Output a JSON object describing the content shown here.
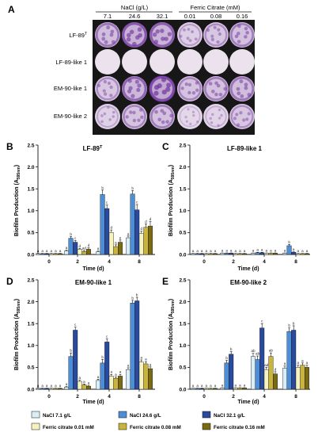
{
  "panel_a": {
    "letter": "A",
    "groups": [
      {
        "label": "NaCl (g/L)",
        "columns": [
          "7.1",
          "24.6",
          "32.1"
        ]
      },
      {
        "label": "Ferric Citrate (mM)",
        "columns": [
          "0.01",
          "0.08",
          "0.16"
        ]
      }
    ],
    "rows": [
      {
        "label": "LF-89",
        "sup": "T",
        "stain": [
          0.6,
          0.8,
          0.75,
          0.35,
          0.45,
          0.55
        ]
      },
      {
        "label": "LF-89-like 1",
        "sup": "",
        "stain": [
          0.03,
          0.03,
          0.03,
          0.03,
          0.03,
          0.03
        ]
      },
      {
        "label": "EM-90-like 1",
        "sup": "",
        "stain": [
          0.45,
          0.7,
          0.95,
          0.5,
          0.55,
          0.6
        ]
      },
      {
        "label": "EM-90-like 2",
        "sup": "",
        "stain": [
          0.3,
          0.5,
          0.55,
          0.2,
          0.25,
          0.45
        ]
      }
    ]
  },
  "colors": {
    "nacl_7_1": "#dbeef8",
    "nacl_24_6": "#4d8fd6",
    "nacl_32_1": "#2a4a9e",
    "fc_0_01": "#f6f3bf",
    "fc_0_08": "#c9b53e",
    "fc_0_16": "#7b6a14",
    "stain_light": "#ece4ee",
    "stain_dark": "#6a2f9a"
  },
  "chart_data": [
    {
      "panel": "B",
      "type": "bar",
      "title": "LF-89",
      "title_sup": "T",
      "xlabel": "Time (d)",
      "ylabel": "Biofilm Production (A",
      "ylabel_sub": "595nm",
      "ylabel_end": ")",
      "categories": [
        "0",
        "2",
        "4",
        "8"
      ],
      "ylim": [
        0,
        2.5
      ],
      "yticks": [
        "0.0",
        "0.5",
        "1.0",
        "1.5",
        "2.0",
        "2.5"
      ],
      "series": [
        {
          "name": "NaCl 7.1 g/L",
          "values": [
            0.02,
            0.08,
            0.06,
            0.38
          ],
          "errors": [
            0.005,
            0.02,
            0.02,
            0.04
          ],
          "letters": [
            "a",
            "a",
            "a",
            "a"
          ]
        },
        {
          "name": "NaCl 24.6 g/L",
          "values": [
            0.02,
            0.37,
            1.37,
            1.38
          ],
          "errors": [
            0.005,
            0.04,
            0.1,
            0.08
          ],
          "letters": [
            "a",
            "b",
            "b",
            "b"
          ]
        },
        {
          "name": "NaCl 32.1 g/L",
          "values": [
            0.02,
            0.28,
            1.05,
            1.02
          ],
          "errors": [
            0.005,
            0.04,
            0.08,
            0.12
          ],
          "letters": [
            "a",
            "c",
            "c",
            "c"
          ]
        },
        {
          "name": "Ferric citrate 0.01 mM",
          "values": [
            0.02,
            0.12,
            0.5,
            0.48
          ],
          "errors": [
            0.005,
            0.02,
            0.06,
            0.05
          ],
          "letters": [
            "a",
            "d",
            "d",
            "d"
          ]
        },
        {
          "name": "Ferric citrate 0.08 mM",
          "values": [
            0.02,
            0.07,
            0.18,
            0.62
          ],
          "errors": [
            0.005,
            0.02,
            0.04,
            0.08
          ],
          "letters": [
            "a",
            "ad",
            "a",
            "d"
          ]
        },
        {
          "name": "Ferric citrate 0.16 mM",
          "values": [
            0.02,
            0.12,
            0.28,
            0.65
          ],
          "errors": [
            0.005,
            0.03,
            0.05,
            0.1
          ],
          "letters": [
            "a",
            "d",
            "e",
            "d"
          ]
        }
      ]
    },
    {
      "panel": "C",
      "type": "bar",
      "title": "LF-89-like 1",
      "title_sup": "",
      "xlabel": "Time (d)",
      "ylabel": "Biofilm Production (A",
      "ylabel_sub": "595nm",
      "ylabel_end": ")",
      "categories": [
        "0",
        "2",
        "4",
        "8"
      ],
      "ylim": [
        0,
        2.5
      ],
      "yticks": [
        "0.0",
        "0.5",
        "1.0",
        "1.5",
        "2.0",
        "2.5"
      ],
      "series": [
        {
          "name": "NaCl 7.1 g/L",
          "values": [
            0.02,
            0.03,
            0.03,
            0.03
          ],
          "errors": [
            0.005,
            0.005,
            0.005,
            0.005
          ],
          "letters": [
            "a",
            "a",
            "a",
            "a"
          ]
        },
        {
          "name": "NaCl 24.6 g/L",
          "values": [
            0.02,
            0.03,
            0.04,
            0.2
          ],
          "errors": [
            0.005,
            0.005,
            0.01,
            0.03
          ],
          "letters": [
            "a",
            "a",
            "a",
            "b"
          ]
        },
        {
          "name": "NaCl 32.1 g/L",
          "values": [
            0.02,
            0.03,
            0.04,
            0.05
          ],
          "errors": [
            0.005,
            0.005,
            0.01,
            0.01
          ],
          "letters": [
            "a",
            "a",
            "a",
            "a"
          ]
        },
        {
          "name": "Ferric citrate 0.01 mM",
          "values": [
            0.02,
            0.02,
            0.03,
            0.02
          ],
          "errors": [
            0.005,
            0.005,
            0.005,
            0.005
          ],
          "letters": [
            "a",
            "a",
            "a",
            "a"
          ]
        },
        {
          "name": "Ferric citrate 0.08 mM",
          "values": [
            0.02,
            0.02,
            0.03,
            0.02
          ],
          "errors": [
            0.005,
            0.005,
            0.005,
            0.005
          ],
          "letters": [
            "a",
            "a",
            "a",
            "a"
          ]
        },
        {
          "name": "Ferric citrate 0.16 mM",
          "values": [
            0.02,
            0.02,
            0.03,
            0.02
          ],
          "errors": [
            0.005,
            0.005,
            0.005,
            0.005
          ],
          "letters": [
            "a",
            "a",
            "a",
            "a"
          ]
        }
      ]
    },
    {
      "panel": "D",
      "type": "bar",
      "title": "EM-90-like 1",
      "title_sup": "",
      "xlabel": "Time (d)",
      "ylabel": "Biofilm Production (A",
      "ylabel_sub": "595nm",
      "ylabel_end": ")",
      "categories": [
        "0",
        "2",
        "4",
        "8"
      ],
      "ylim": [
        0,
        2.5
      ],
      "yticks": [
        "0.0",
        "0.5",
        "1.0",
        "1.5",
        "2.0",
        "2.5"
      ],
      "series": [
        {
          "name": "NaCl 7.1 g/L",
          "values": [
            0.02,
            0.05,
            0.2,
            0.45
          ],
          "errors": [
            0.005,
            0.01,
            0.03,
            0.04
          ],
          "letters": [
            "a",
            "a",
            "a",
            "a"
          ]
        },
        {
          "name": "NaCl 24.6 g/L",
          "values": [
            0.02,
            0.75,
            0.6,
            1.97
          ],
          "errors": [
            0.005,
            0.08,
            0.08,
            0.06
          ],
          "letters": [
            "a",
            "b",
            "b",
            "b"
          ]
        },
        {
          "name": "NaCl 32.1 g/L",
          "values": [
            0.02,
            1.35,
            1.08,
            2.02
          ],
          "errors": [
            0.005,
            0.07,
            0.07,
            0.08
          ],
          "letters": [
            "a",
            "c",
            "c",
            "b"
          ]
        },
        {
          "name": "Ferric citrate 0.01 mM",
          "values": [
            0.02,
            0.18,
            0.3,
            0.62
          ],
          "errors": [
            0.005,
            0.03,
            0.04,
            0.05
          ],
          "letters": [
            "a",
            "a",
            "a",
            "a"
          ]
        },
        {
          "name": "Ferric citrate 0.08 mM",
          "values": [
            0.02,
            0.1,
            0.25,
            0.58
          ],
          "errors": [
            0.005,
            0.02,
            0.03,
            0.05
          ],
          "letters": [
            "a",
            "a",
            "a",
            "a"
          ]
        },
        {
          "name": "Ferric citrate 0.16 mM",
          "values": [
            0.02,
            0.07,
            0.3,
            0.47
          ],
          "errors": [
            0.005,
            0.02,
            0.04,
            0.04
          ],
          "letters": [
            "a",
            "a",
            "a",
            "a"
          ]
        }
      ]
    },
    {
      "panel": "E",
      "type": "bar",
      "title": "EM-90-like 2",
      "title_sup": "",
      "xlabel": "Time (d)",
      "ylabel": "Biofilm Production (A",
      "ylabel_sub": "595nm",
      "ylabel_end": ")",
      "categories": [
        "0",
        "2",
        "4",
        "8"
      ],
      "ylim": [
        0,
        2.5
      ],
      "yticks": [
        "0.0",
        "0.5",
        "1.0",
        "1.5",
        "2.0",
        "2.5"
      ],
      "series": [
        {
          "name": "NaCl 7.1 g/L",
          "values": [
            0.02,
            0.03,
            0.75,
            0.48
          ],
          "errors": [
            0.005,
            0.005,
            0.07,
            0.05
          ],
          "letters": [
            "a",
            "a",
            "ab",
            "a"
          ]
        },
        {
          "name": "NaCl 24.6 g/L",
          "values": [
            0.02,
            0.6,
            0.68,
            1.32
          ],
          "errors": [
            0.005,
            0.06,
            0.08,
            0.08
          ],
          "letters": [
            "a",
            "b",
            "ab",
            "b"
          ]
        },
        {
          "name": "NaCl 32.1 g/L",
          "values": [
            0.02,
            0.8,
            1.4,
            1.35
          ],
          "errors": [
            0.005,
            0.06,
            0.1,
            0.1
          ],
          "letters": [
            "a",
            "b",
            "c",
            "b"
          ]
        },
        {
          "name": "Ferric citrate 0.01 mM",
          "values": [
            0.02,
            0.03,
            0.45,
            0.5
          ],
          "errors": [
            0.005,
            0.005,
            0.05,
            0.05
          ],
          "letters": [
            "a",
            "a",
            "ad",
            "a"
          ]
        },
        {
          "name": "Ferric citrate 0.08 mM",
          "values": [
            0.02,
            0.03,
            0.75,
            0.55
          ],
          "errors": [
            0.005,
            0.005,
            0.08,
            0.05
          ],
          "letters": [
            "a",
            "a",
            "ab",
            "a"
          ]
        },
        {
          "name": "Ferric citrate 0.16 mM",
          "values": [
            0.02,
            0.03,
            0.35,
            0.5
          ],
          "errors": [
            0.005,
            0.005,
            0.05,
            0.05
          ],
          "letters": [
            "a",
            "a",
            "d",
            "a"
          ]
        }
      ]
    }
  ],
  "legend": [
    {
      "label": "NaCl 7.1 g/L",
      "color_key": "nacl_7_1"
    },
    {
      "label": "NaCl 24.6 g/L",
      "color_key": "nacl_24_6"
    },
    {
      "label": "NaCl 32.1 g/L",
      "color_key": "nacl_32_1"
    },
    {
      "label": "Ferric citrate 0.01 mM",
      "color_key": "fc_0_01"
    },
    {
      "label": "Ferric citrate 0.08 mM",
      "color_key": "fc_0_08"
    },
    {
      "label": "Ferric citrate 0.16 mM",
      "color_key": "fc_0_16"
    }
  ]
}
